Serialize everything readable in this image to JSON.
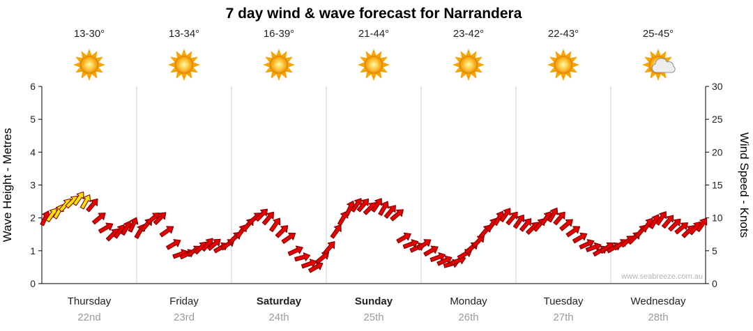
{
  "chart_data": {
    "type": "scatter",
    "marker": "wind-arrow",
    "title": "7 day wind & wave forecast for Narrandera",
    "ylabel_left": "Wave Height - Metres",
    "ylabel_right": "Wind Speed - Knots",
    "ylim_left": [
      0,
      6
    ],
    "ylim_right": [
      0,
      30
    ],
    "yticks_left": [
      0,
      1,
      2,
      3,
      4,
      5,
      6
    ],
    "yticks_right": [
      0,
      5,
      10,
      15,
      20,
      25,
      30
    ],
    "grid": "vertical-day-boundaries",
    "legend": "none",
    "watermark": "www.seabreeze.com.au",
    "arrow_colors": {
      "r": "#e60000",
      "y": "#ffe400"
    },
    "arrow_outline": "#7d0000",
    "days": [
      {
        "name": "Thursday",
        "date": "22nd",
        "temp": "13-30°",
        "icon": "sunny",
        "bold": false,
        "kn": [
          10,
          10.5,
          11,
          12,
          12.5,
          13,
          12.5,
          12,
          10,
          8.5,
          7.5,
          8,
          8.5,
          9
        ],
        "dir": [
          25,
          35,
          30,
          40,
          45,
          35,
          30,
          40,
          50,
          60,
          45,
          35,
          30,
          25
        ],
        "col": [
          "r",
          "y",
          "y",
          "y",
          "y",
          "y",
          "y",
          "r",
          "r",
          "r",
          "r",
          "r",
          "r",
          "r"
        ]
      },
      {
        "name": "Friday",
        "date": "23rd",
        "temp": "13-34°",
        "icon": "sunny",
        "bold": false,
        "kn": [
          8,
          9,
          10,
          10,
          8,
          6,
          4.5,
          4.5,
          5,
          5.5,
          6,
          6,
          5.5,
          6
        ],
        "dir": [
          30,
          40,
          50,
          45,
          55,
          60,
          70,
          65,
          55,
          45,
          40,
          50,
          60,
          55
        ]
      },
      {
        "name": "Saturday",
        "date": "24th",
        "temp": "16-39°",
        "icon": "sunny",
        "bold": true,
        "kn": [
          7,
          8,
          9,
          10,
          10.5,
          10,
          9,
          8,
          7,
          5,
          4,
          3,
          2.5,
          4
        ],
        "dir": [
          45,
          35,
          40,
          50,
          45,
          40,
          35,
          45,
          55,
          65,
          75,
          70,
          60,
          50
        ]
      },
      {
        "name": "Sunday",
        "date": "25th",
        "temp": "21-44°",
        "icon": "sunny",
        "bold": true,
        "kn": [
          5.5,
          8,
          10,
          11.5,
          12,
          12,
          11.5,
          12,
          11.5,
          11,
          10.5,
          7,
          6,
          5.5
        ],
        "dir": [
          40,
          35,
          30,
          25,
          35,
          40,
          45,
          35,
          30,
          40,
          50,
          60,
          70,
          65
        ]
      },
      {
        "name": "Monday",
        "date": "26th",
        "temp": "23-42°",
        "icon": "sunny",
        "bold": false,
        "kn": [
          6,
          5,
          4,
          3.5,
          3,
          3.5,
          4.5,
          5.5,
          6.5,
          8,
          9,
          10,
          10.5,
          10
        ],
        "dir": [
          55,
          60,
          70,
          65,
          75,
          70,
          60,
          50,
          45,
          40,
          35,
          30,
          35,
          40
        ]
      },
      {
        "name": "Tuesday",
        "date": "27th",
        "temp": "22-43°",
        "icon": "sunny",
        "bold": false,
        "kn": [
          9.5,
          9,
          8.5,
          9,
          10,
          10.5,
          10,
          9,
          8,
          7,
          6,
          5.5,
          5,
          5.5
        ],
        "dir": [
          35,
          40,
          45,
          40,
          35,
          30,
          40,
          50,
          55,
          60,
          65,
          70,
          60,
          55
        ]
      },
      {
        "name": "Wednesday",
        "date": "28th",
        "temp": "25-45°",
        "icon": "sun-cloud",
        "bold": false,
        "kn": [
          5.5,
          6,
          6.5,
          7,
          8,
          9,
          9.5,
          10,
          9.5,
          9,
          8.5,
          8,
          8.5,
          9
        ],
        "dir": [
          60,
          55,
          50,
          45,
          40,
          35,
          30,
          35,
          40,
          45,
          50,
          45,
          40,
          35
        ]
      }
    ]
  }
}
